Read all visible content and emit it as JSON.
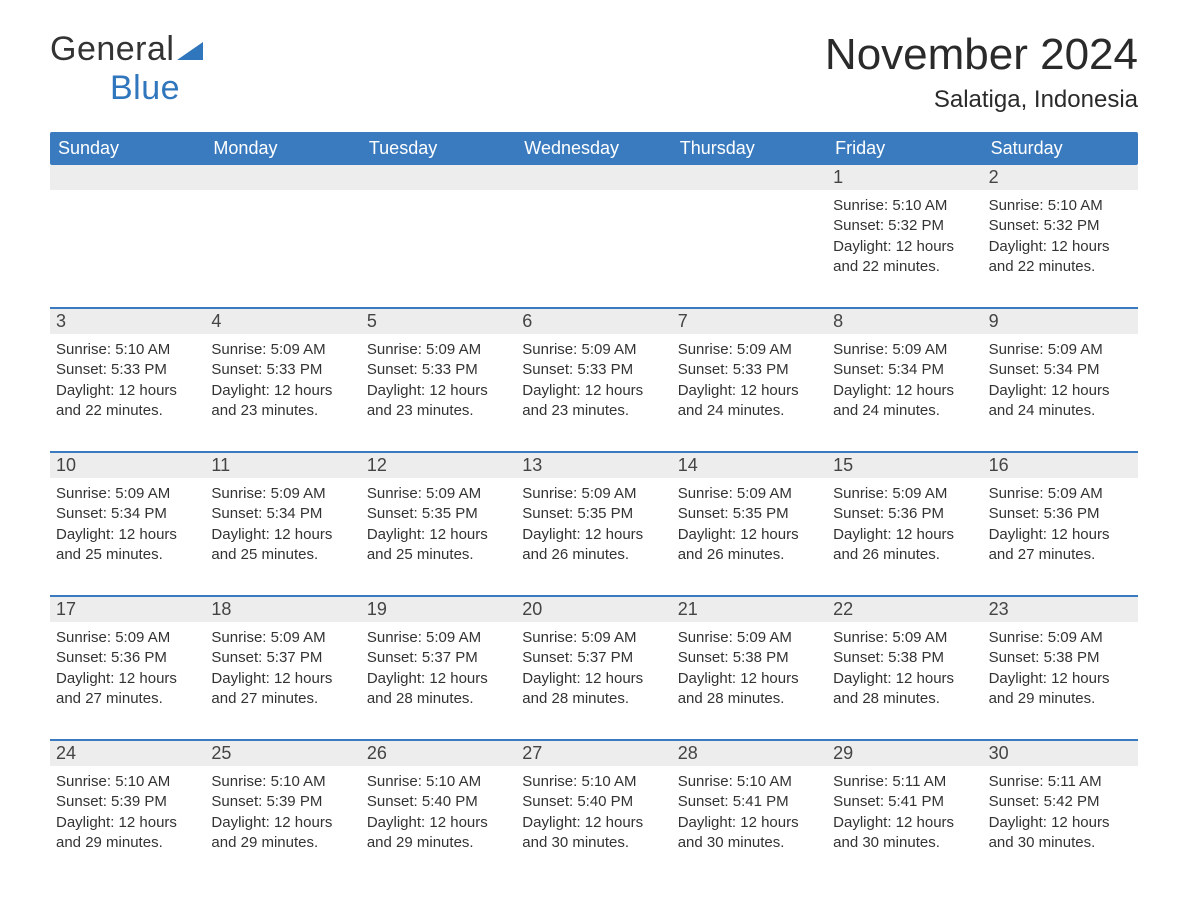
{
  "colors": {
    "header_bg": "#3a7bbf",
    "header_text": "#ffffff",
    "daynum_bg": "#ededed",
    "week_border": "#3a7bbf",
    "body_text": "#333333",
    "logo_blue": "#2f76bd",
    "page_bg": "#ffffff"
  },
  "typography": {
    "month_fontsize": 44,
    "location_fontsize": 24,
    "weekday_fontsize": 18,
    "daynum_fontsize": 18,
    "body_fontsize": 15,
    "logo_fontsize": 34
  },
  "logo": {
    "part1": "General",
    "part2": "Blue"
  },
  "title": {
    "month": "November 2024",
    "location": "Salatiga, Indonesia"
  },
  "weekdays": [
    "Sunday",
    "Monday",
    "Tuesday",
    "Wednesday",
    "Thursday",
    "Friday",
    "Saturday"
  ],
  "layout": {
    "columns": 7,
    "rows": 5,
    "first_day_column_index": 5
  },
  "weeks": [
    [
      null,
      null,
      null,
      null,
      null,
      {
        "n": "1",
        "sunrise": "Sunrise: 5:10 AM",
        "sunset": "Sunset: 5:32 PM",
        "daylight1": "Daylight: 12 hours",
        "daylight2": "and 22 minutes."
      },
      {
        "n": "2",
        "sunrise": "Sunrise: 5:10 AM",
        "sunset": "Sunset: 5:32 PM",
        "daylight1": "Daylight: 12 hours",
        "daylight2": "and 22 minutes."
      }
    ],
    [
      {
        "n": "3",
        "sunrise": "Sunrise: 5:10 AM",
        "sunset": "Sunset: 5:33 PM",
        "daylight1": "Daylight: 12 hours",
        "daylight2": "and 22 minutes."
      },
      {
        "n": "4",
        "sunrise": "Sunrise: 5:09 AM",
        "sunset": "Sunset: 5:33 PM",
        "daylight1": "Daylight: 12 hours",
        "daylight2": "and 23 minutes."
      },
      {
        "n": "5",
        "sunrise": "Sunrise: 5:09 AM",
        "sunset": "Sunset: 5:33 PM",
        "daylight1": "Daylight: 12 hours",
        "daylight2": "and 23 minutes."
      },
      {
        "n": "6",
        "sunrise": "Sunrise: 5:09 AM",
        "sunset": "Sunset: 5:33 PM",
        "daylight1": "Daylight: 12 hours",
        "daylight2": "and 23 minutes."
      },
      {
        "n": "7",
        "sunrise": "Sunrise: 5:09 AM",
        "sunset": "Sunset: 5:33 PM",
        "daylight1": "Daylight: 12 hours",
        "daylight2": "and 24 minutes."
      },
      {
        "n": "8",
        "sunrise": "Sunrise: 5:09 AM",
        "sunset": "Sunset: 5:34 PM",
        "daylight1": "Daylight: 12 hours",
        "daylight2": "and 24 minutes."
      },
      {
        "n": "9",
        "sunrise": "Sunrise: 5:09 AM",
        "sunset": "Sunset: 5:34 PM",
        "daylight1": "Daylight: 12 hours",
        "daylight2": "and 24 minutes."
      }
    ],
    [
      {
        "n": "10",
        "sunrise": "Sunrise: 5:09 AM",
        "sunset": "Sunset: 5:34 PM",
        "daylight1": "Daylight: 12 hours",
        "daylight2": "and 25 minutes."
      },
      {
        "n": "11",
        "sunrise": "Sunrise: 5:09 AM",
        "sunset": "Sunset: 5:34 PM",
        "daylight1": "Daylight: 12 hours",
        "daylight2": "and 25 minutes."
      },
      {
        "n": "12",
        "sunrise": "Sunrise: 5:09 AM",
        "sunset": "Sunset: 5:35 PM",
        "daylight1": "Daylight: 12 hours",
        "daylight2": "and 25 minutes."
      },
      {
        "n": "13",
        "sunrise": "Sunrise: 5:09 AM",
        "sunset": "Sunset: 5:35 PM",
        "daylight1": "Daylight: 12 hours",
        "daylight2": "and 26 minutes."
      },
      {
        "n": "14",
        "sunrise": "Sunrise: 5:09 AM",
        "sunset": "Sunset: 5:35 PM",
        "daylight1": "Daylight: 12 hours",
        "daylight2": "and 26 minutes."
      },
      {
        "n": "15",
        "sunrise": "Sunrise: 5:09 AM",
        "sunset": "Sunset: 5:36 PM",
        "daylight1": "Daylight: 12 hours",
        "daylight2": "and 26 minutes."
      },
      {
        "n": "16",
        "sunrise": "Sunrise: 5:09 AM",
        "sunset": "Sunset: 5:36 PM",
        "daylight1": "Daylight: 12 hours",
        "daylight2": "and 27 minutes."
      }
    ],
    [
      {
        "n": "17",
        "sunrise": "Sunrise: 5:09 AM",
        "sunset": "Sunset: 5:36 PM",
        "daylight1": "Daylight: 12 hours",
        "daylight2": "and 27 minutes."
      },
      {
        "n": "18",
        "sunrise": "Sunrise: 5:09 AM",
        "sunset": "Sunset: 5:37 PM",
        "daylight1": "Daylight: 12 hours",
        "daylight2": "and 27 minutes."
      },
      {
        "n": "19",
        "sunrise": "Sunrise: 5:09 AM",
        "sunset": "Sunset: 5:37 PM",
        "daylight1": "Daylight: 12 hours",
        "daylight2": "and 28 minutes."
      },
      {
        "n": "20",
        "sunrise": "Sunrise: 5:09 AM",
        "sunset": "Sunset: 5:37 PM",
        "daylight1": "Daylight: 12 hours",
        "daylight2": "and 28 minutes."
      },
      {
        "n": "21",
        "sunrise": "Sunrise: 5:09 AM",
        "sunset": "Sunset: 5:38 PM",
        "daylight1": "Daylight: 12 hours",
        "daylight2": "and 28 minutes."
      },
      {
        "n": "22",
        "sunrise": "Sunrise: 5:09 AM",
        "sunset": "Sunset: 5:38 PM",
        "daylight1": "Daylight: 12 hours",
        "daylight2": "and 28 minutes."
      },
      {
        "n": "23",
        "sunrise": "Sunrise: 5:09 AM",
        "sunset": "Sunset: 5:38 PM",
        "daylight1": "Daylight: 12 hours",
        "daylight2": "and 29 minutes."
      }
    ],
    [
      {
        "n": "24",
        "sunrise": "Sunrise: 5:10 AM",
        "sunset": "Sunset: 5:39 PM",
        "daylight1": "Daylight: 12 hours",
        "daylight2": "and 29 minutes."
      },
      {
        "n": "25",
        "sunrise": "Sunrise: 5:10 AM",
        "sunset": "Sunset: 5:39 PM",
        "daylight1": "Daylight: 12 hours",
        "daylight2": "and 29 minutes."
      },
      {
        "n": "26",
        "sunrise": "Sunrise: 5:10 AM",
        "sunset": "Sunset: 5:40 PM",
        "daylight1": "Daylight: 12 hours",
        "daylight2": "and 29 minutes."
      },
      {
        "n": "27",
        "sunrise": "Sunrise: 5:10 AM",
        "sunset": "Sunset: 5:40 PM",
        "daylight1": "Daylight: 12 hours",
        "daylight2": "and 30 minutes."
      },
      {
        "n": "28",
        "sunrise": "Sunrise: 5:10 AM",
        "sunset": "Sunset: 5:41 PM",
        "daylight1": "Daylight: 12 hours",
        "daylight2": "and 30 minutes."
      },
      {
        "n": "29",
        "sunrise": "Sunrise: 5:11 AM",
        "sunset": "Sunset: 5:41 PM",
        "daylight1": "Daylight: 12 hours",
        "daylight2": "and 30 minutes."
      },
      {
        "n": "30",
        "sunrise": "Sunrise: 5:11 AM",
        "sunset": "Sunset: 5:42 PM",
        "daylight1": "Daylight: 12 hours",
        "daylight2": "and 30 minutes."
      }
    ]
  ]
}
